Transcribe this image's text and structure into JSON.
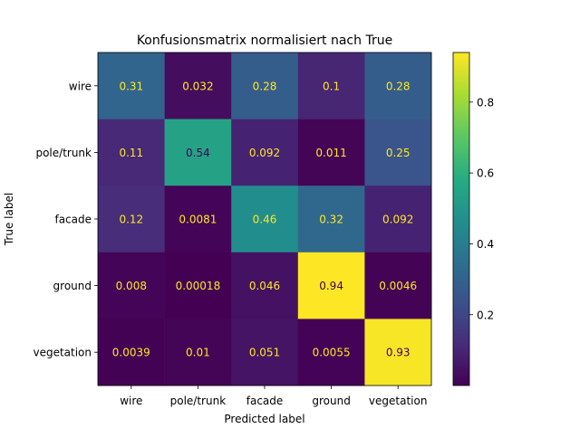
{
  "chart_data": {
    "type": "heatmap",
    "title": "Konfusionsmatrix normalisiert nach True",
    "xlabel": "Predicted label",
    "ylabel": "True label",
    "x_categories": [
      "wire",
      "pole/trunk",
      "facade",
      "ground",
      "vegetation"
    ],
    "y_categories": [
      "wire",
      "pole/trunk",
      "facade",
      "ground",
      "vegetation"
    ],
    "values": [
      [
        0.31,
        0.032,
        0.28,
        0.1,
        0.28
      ],
      [
        0.11,
        0.54,
        0.092,
        0.011,
        0.25
      ],
      [
        0.12,
        0.0081,
        0.46,
        0.32,
        0.092
      ],
      [
        0.008,
        0.00018,
        0.046,
        0.94,
        0.0046
      ],
      [
        0.0039,
        0.01,
        0.051,
        0.0055,
        0.93
      ]
    ],
    "cell_labels": [
      [
        "0.31",
        "0.032",
        "0.28",
        "0.1",
        "0.28"
      ],
      [
        "0.11",
        "0.54",
        "0.092",
        "0.011",
        "0.25"
      ],
      [
        "0.12",
        "0.0081",
        "0.46",
        "0.32",
        "0.092"
      ],
      [
        "0.008",
        "0.00018",
        "0.046",
        "0.94",
        "0.0046"
      ],
      [
        "0.0039",
        "0.01",
        "0.051",
        "0.0055",
        "0.93"
      ]
    ],
    "colormap": "viridis",
    "color_range": [
      0.00018,
      0.94
    ],
    "colorbar_ticks": [
      "0.2",
      "0.4",
      "0.6",
      "0.8"
    ],
    "colorbar_tick_values": [
      0.2,
      0.4,
      0.6,
      0.8
    ],
    "text_colors": {
      "light": "#fde725",
      "dark": "#440154"
    }
  }
}
